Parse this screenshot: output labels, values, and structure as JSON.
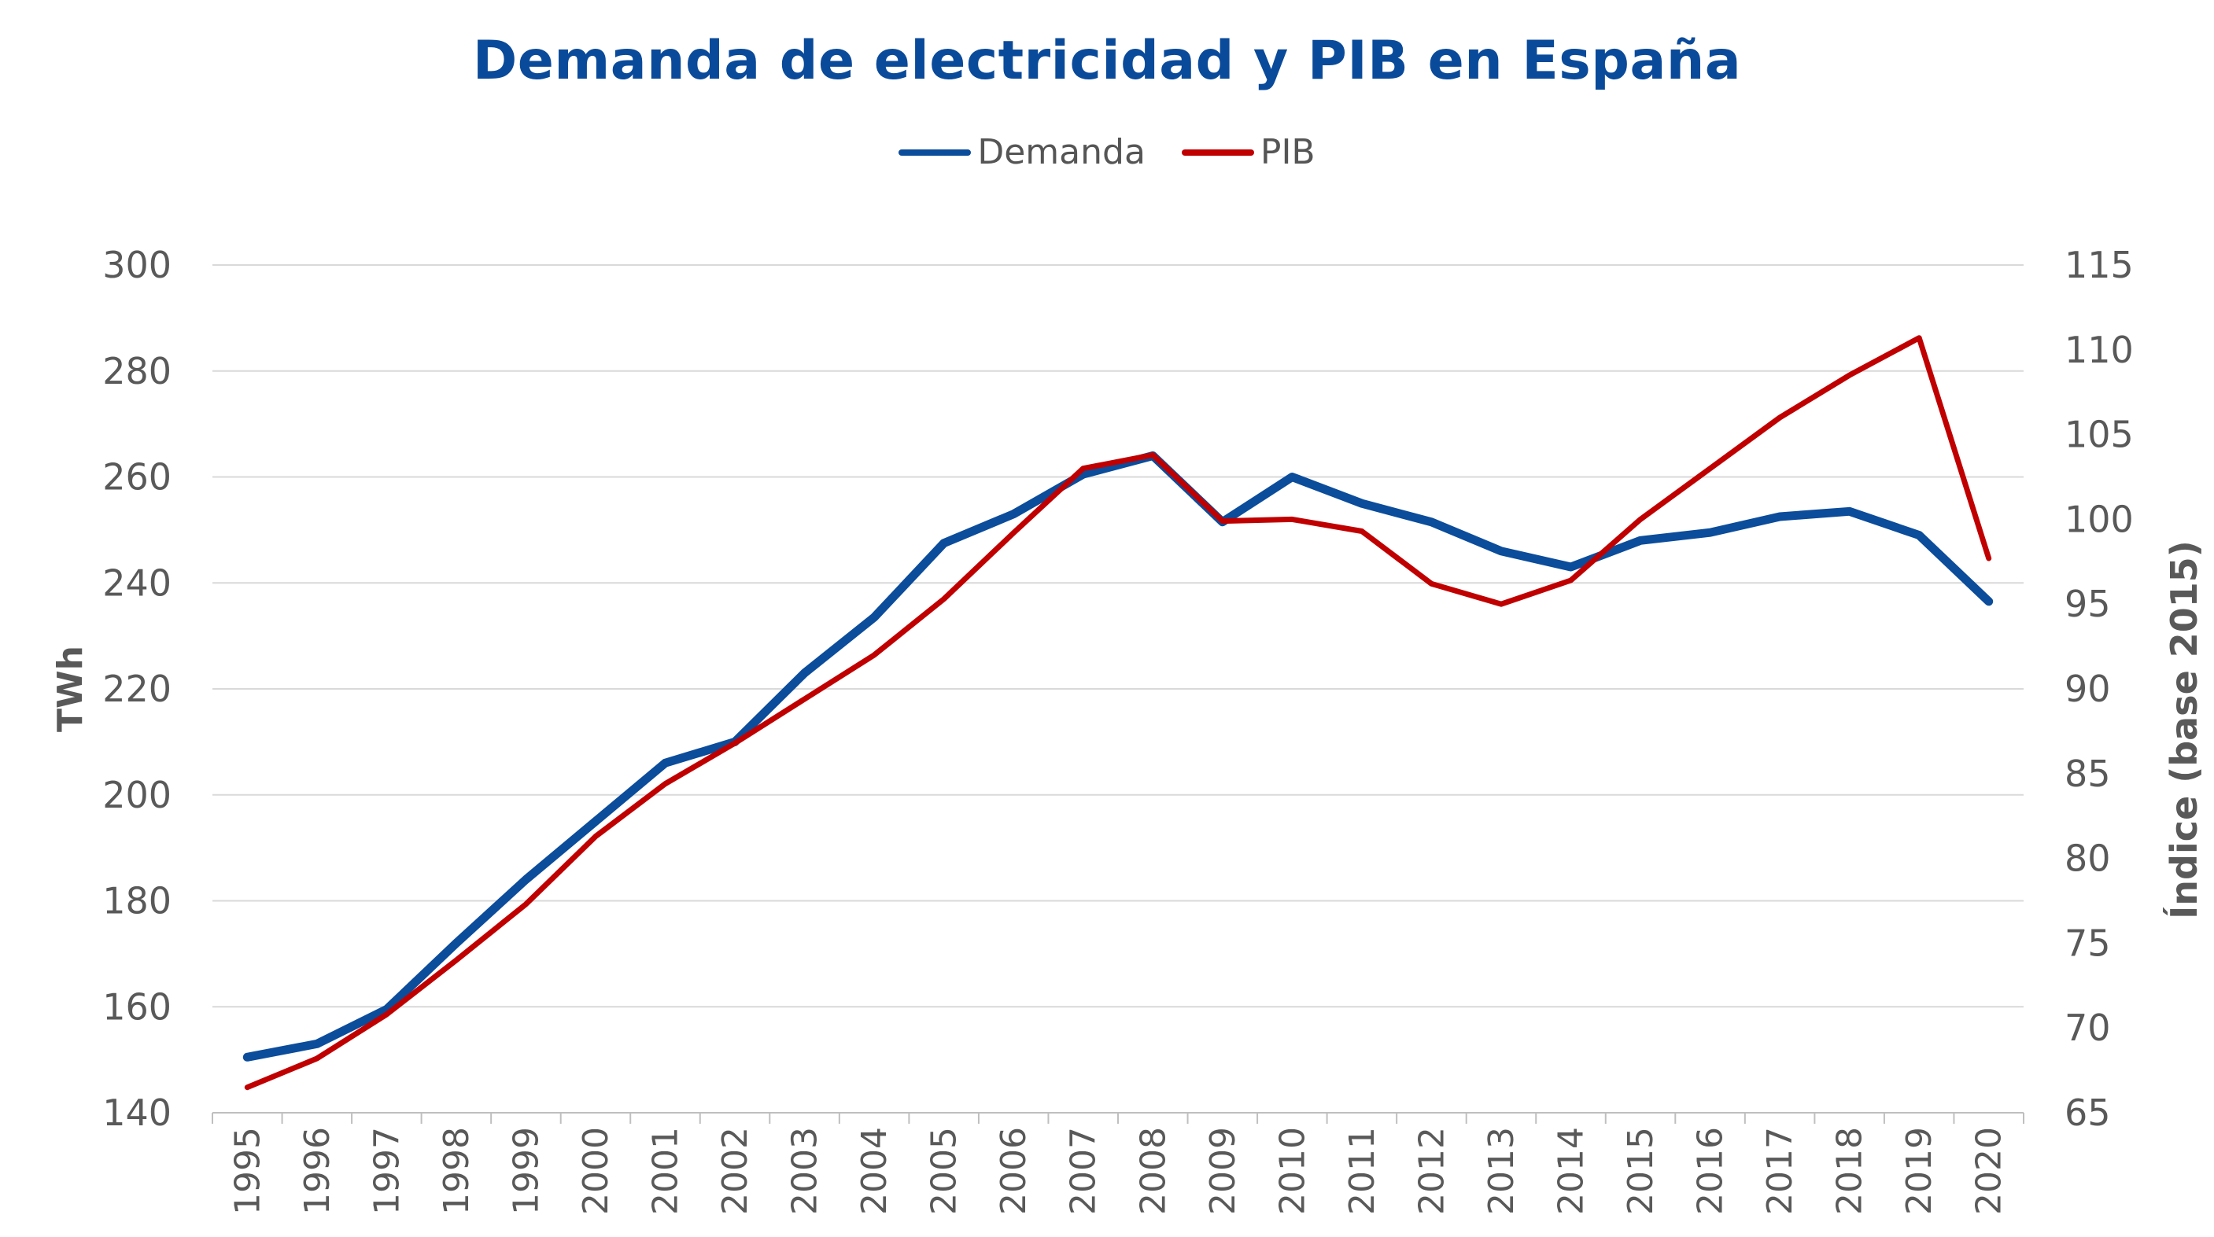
{
  "chart_data": {
    "type": "line",
    "title": "Demanda de electricidad y PIB en España",
    "categories": [
      "1995",
      "1996",
      "1997",
      "1998",
      "1999",
      "2000",
      "2001",
      "2002",
      "2003",
      "2004",
      "2005",
      "2006",
      "2007",
      "2008",
      "2009",
      "2010",
      "2011",
      "2012",
      "2013",
      "2014",
      "2015",
      "2016",
      "2017",
      "2018",
      "2019",
      "2020"
    ],
    "series": [
      {
        "name": "Demanda",
        "axis": "left",
        "color": "#0b4c9b",
        "values": [
          150.5,
          153,
          159.5,
          172,
          184,
          195,
          206,
          210,
          223,
          233.5,
          247.5,
          253,
          260.5,
          264,
          251.5,
          260,
          255,
          251.5,
          246,
          243,
          248,
          249.5,
          252.5,
          253.5,
          249,
          236.5
        ]
      },
      {
        "name": "PIB",
        "axis": "right",
        "color": "#c00000",
        "values": [
          66.5,
          68.2,
          70.8,
          74,
          77.3,
          81.3,
          84.4,
          86.8,
          89.4,
          92,
          95.3,
          99.2,
          103,
          103.8,
          99.9,
          100,
          99.3,
          96.2,
          95,
          96.4,
          100,
          103,
          106,
          108.5,
          110.7,
          97.7
        ]
      }
    ],
    "ylabel_left": "TWh",
    "ylabel_right": "Índice (base 2015)",
    "ylim_left": [
      140,
      300
    ],
    "yticks_left": [
      "140",
      "160",
      "180",
      "200",
      "220",
      "240",
      "260",
      "280",
      "300"
    ],
    "ylim_right": [
      65,
      115
    ],
    "yticks_right": [
      "65",
      "70",
      "75",
      "80",
      "85",
      "90",
      "95",
      "100",
      "105",
      "110",
      "115"
    ],
    "grid": true,
    "legend_position": "top-center"
  }
}
